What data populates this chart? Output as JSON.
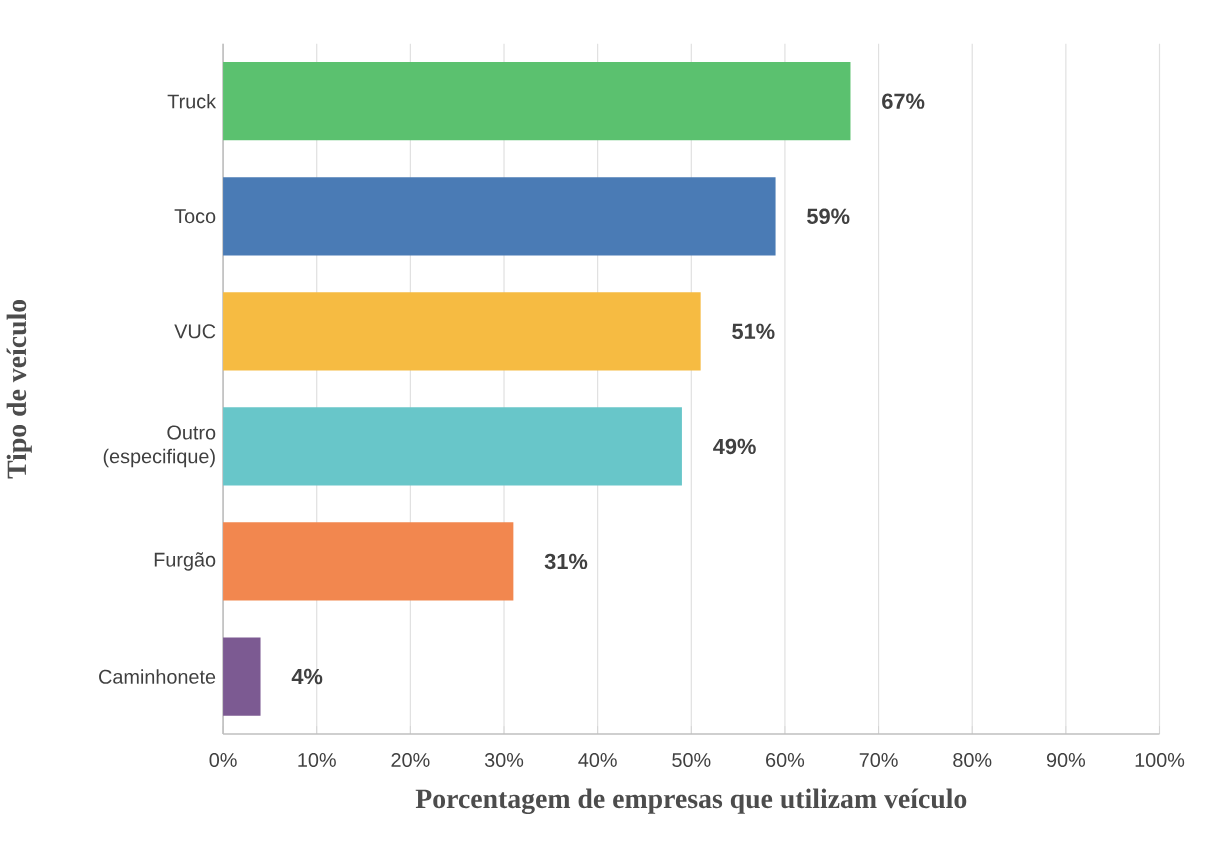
{
  "chart_data": {
    "type": "bar",
    "orientation": "horizontal",
    "xlabel": "Porcentagem de empresas que utilizam veículo",
    "ylabel": "Tipo de veículo",
    "categories": [
      "Truck",
      "Toco",
      "VUC",
      "Outro (especifique)",
      "Furgão",
      "Caminhonete"
    ],
    "values": [
      67,
      59,
      51,
      49,
      31,
      4
    ],
    "value_labels": [
      "67%",
      "59%",
      "51%",
      "49%",
      "31%",
      "4%"
    ],
    "colors": [
      "#5bc16f",
      "#4a7bb5",
      "#f6bb42",
      "#68c6c9",
      "#f2874f",
      "#7c5a92"
    ],
    "xlim": [
      0,
      100
    ],
    "xticks": [
      {
        "value": 0,
        "label": "0%"
      },
      {
        "value": 10,
        "label": "10%"
      },
      {
        "value": 20,
        "label": "20%"
      },
      {
        "value": 30,
        "label": "30%"
      },
      {
        "value": 40,
        "label": "40%"
      },
      {
        "value": 50,
        "label": "50%"
      },
      {
        "value": 60,
        "label": "60%"
      },
      {
        "value": 70,
        "label": "70%"
      },
      {
        "value": 80,
        "label": "80%"
      },
      {
        "value": 90,
        "label": "90%"
      },
      {
        "value": 100,
        "label": "100%"
      }
    ],
    "grid": "x"
  }
}
